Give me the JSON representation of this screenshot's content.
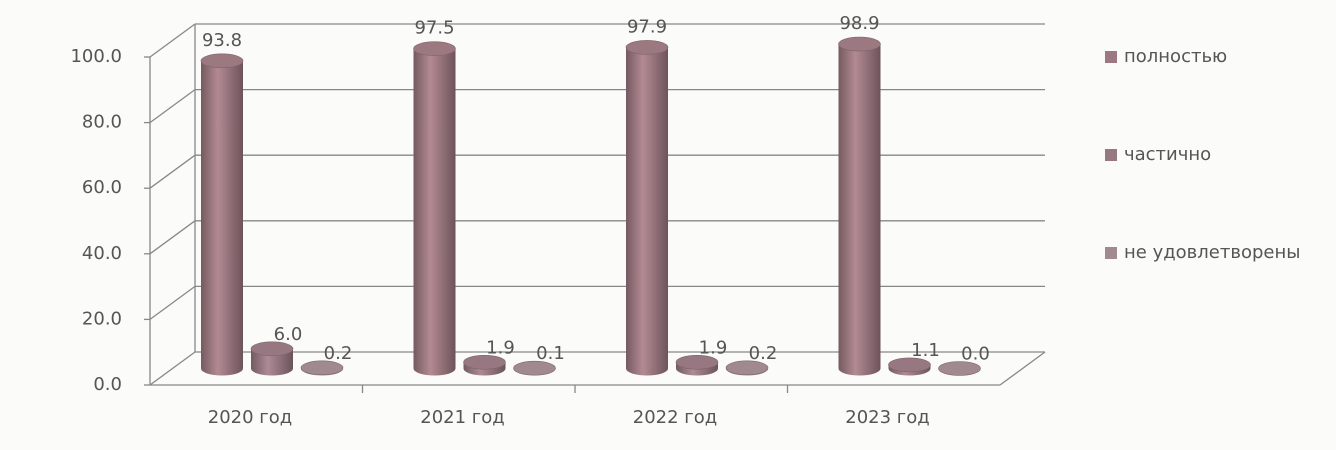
{
  "chart_data": {
    "type": "bar3d",
    "categories": [
      "2020 год",
      "2021 год",
      "2022 год",
      "2023 год"
    ],
    "series": [
      {
        "name": "полностью",
        "color": "#9c7880",
        "values": [
          93.8,
          97.5,
          97.9,
          98.9
        ],
        "value_labels": [
          "93.8",
          "97.5",
          "97.9",
          "98.9"
        ]
      },
      {
        "name": "частично",
        "color": "#977882",
        "values": [
          6.0,
          1.9,
          1.9,
          1.1
        ],
        "value_labels": [
          "6.0",
          "1.9",
          "1.9",
          "1.1"
        ]
      },
      {
        "name": "не удовлетворены",
        "color": "#a08a90",
        "values": [
          0.2,
          0.1,
          0.2,
          0.0
        ],
        "value_labels": [
          "0.2",
          "0.1",
          "0.2",
          "0.0"
        ]
      }
    ],
    "ylim": [
      0,
      100
    ],
    "yticks": [
      {
        "value": 0,
        "label": "0.0"
      },
      {
        "value": 20,
        "label": "20.0"
      },
      {
        "value": 40,
        "label": "40.0"
      },
      {
        "value": 60,
        "label": "60.0"
      },
      {
        "value": 80,
        "label": "80.0"
      },
      {
        "value": 100,
        "label": "100.0"
      }
    ],
    "grid": true,
    "legend": "right"
  }
}
